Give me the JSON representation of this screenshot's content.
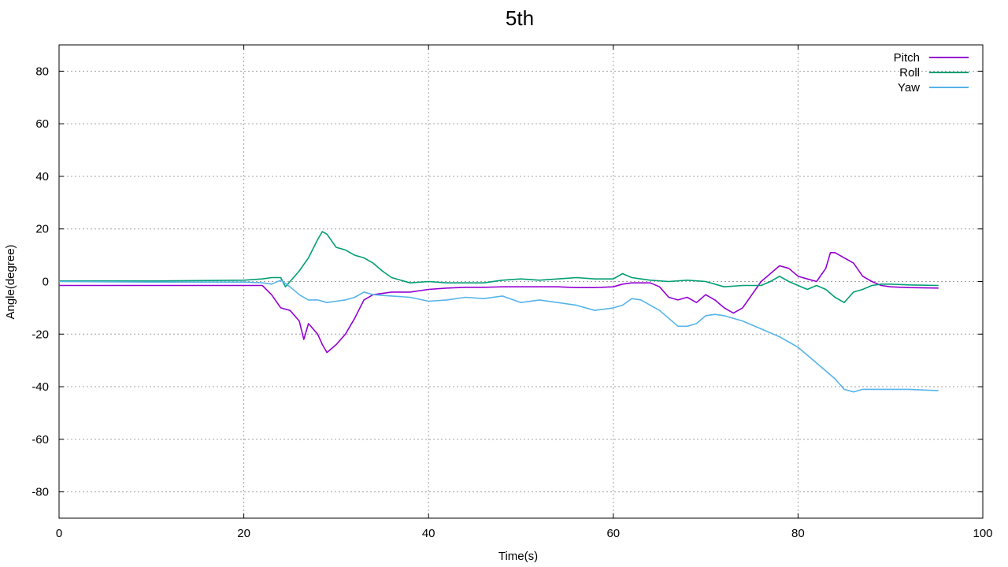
{
  "chart_data": {
    "type": "line",
    "title": "5th",
    "xlabel": "Time(s)",
    "ylabel": "Angle(degree)",
    "xlim": [
      0,
      100
    ],
    "ylim": [
      -90,
      90
    ],
    "x_ticks": [
      0,
      20,
      40,
      60,
      80,
      100
    ],
    "y_ticks": [
      -80,
      -60,
      -40,
      -20,
      0,
      20,
      40,
      60,
      80
    ],
    "grid": true,
    "legend_position": "top-right",
    "series": [
      {
        "name": "Pitch",
        "color": "#9400d3",
        "points": [
          [
            0,
            -1.5
          ],
          [
            10,
            -1.5
          ],
          [
            20,
            -1.5
          ],
          [
            22,
            -1.5
          ],
          [
            23,
            -5
          ],
          [
            24,
            -10
          ],
          [
            25,
            -11
          ],
          [
            26,
            -15
          ],
          [
            26.5,
            -22
          ],
          [
            27,
            -16
          ],
          [
            28,
            -20
          ],
          [
            28.5,
            -24
          ],
          [
            29,
            -27
          ],
          [
            30,
            -24
          ],
          [
            31,
            -20
          ],
          [
            32,
            -14
          ],
          [
            33,
            -7
          ],
          [
            34,
            -5
          ],
          [
            36,
            -4
          ],
          [
            38,
            -4
          ],
          [
            40,
            -3
          ],
          [
            42,
            -2.5
          ],
          [
            44,
            -2.2
          ],
          [
            46,
            -2.2
          ],
          [
            48,
            -2
          ],
          [
            50,
            -2
          ],
          [
            52,
            -2
          ],
          [
            54,
            -2
          ],
          [
            56,
            -2.3
          ],
          [
            58,
            -2.3
          ],
          [
            60,
            -2
          ],
          [
            61,
            -1
          ],
          [
            62,
            -0.5
          ],
          [
            64,
            -0.5
          ],
          [
            65,
            -2
          ],
          [
            66,
            -6
          ],
          [
            67,
            -7
          ],
          [
            68,
            -6
          ],
          [
            69,
            -8
          ],
          [
            70,
            -5
          ],
          [
            71,
            -7
          ],
          [
            72,
            -10
          ],
          [
            73,
            -12
          ],
          [
            74,
            -10
          ],
          [
            75,
            -5
          ],
          [
            76,
            0
          ],
          [
            77,
            3
          ],
          [
            78,
            6
          ],
          [
            79,
            5
          ],
          [
            80,
            2
          ],
          [
            81,
            1
          ],
          [
            82,
            0
          ],
          [
            83,
            5
          ],
          [
            83.5,
            11
          ],
          [
            84,
            11
          ],
          [
            85,
            9
          ],
          [
            86,
            7
          ],
          [
            87,
            2
          ],
          [
            88,
            0
          ],
          [
            89,
            -1.5
          ],
          [
            90,
            -2
          ],
          [
            92,
            -2.3
          ],
          [
            95.2,
            -2.5
          ]
        ]
      },
      {
        "name": "Roll",
        "color": "#009e73",
        "points": [
          [
            0,
            0.2
          ],
          [
            10,
            0.2
          ],
          [
            20,
            0.5
          ],
          [
            22,
            1
          ],
          [
            23,
            1.5
          ],
          [
            24,
            1.5
          ],
          [
            24.5,
            -2
          ],
          [
            25,
            0
          ],
          [
            26,
            4
          ],
          [
            27,
            9
          ],
          [
            28,
            16
          ],
          [
            28.5,
            19
          ],
          [
            29,
            18
          ],
          [
            30,
            13
          ],
          [
            31,
            12
          ],
          [
            32,
            10
          ],
          [
            33,
            9
          ],
          [
            34,
            7
          ],
          [
            35,
            4
          ],
          [
            36,
            1.5
          ],
          [
            38,
            -0.5
          ],
          [
            40,
            0
          ],
          [
            42,
            -0.5
          ],
          [
            44,
            -0.5
          ],
          [
            46,
            -0.5
          ],
          [
            48,
            0.5
          ],
          [
            50,
            1
          ],
          [
            52,
            0.5
          ],
          [
            54,
            1
          ],
          [
            56,
            1.5
          ],
          [
            58,
            1
          ],
          [
            60,
            1
          ],
          [
            61,
            3
          ],
          [
            62,
            1.5
          ],
          [
            63,
            1
          ],
          [
            64,
            0.5
          ],
          [
            66,
            0
          ],
          [
            68,
            0.5
          ],
          [
            70,
            0
          ],
          [
            72,
            -2
          ],
          [
            74,
            -1.5
          ],
          [
            76,
            -1.5
          ],
          [
            77,
            0
          ],
          [
            78,
            2
          ],
          [
            79,
            0
          ],
          [
            80,
            -1.5
          ],
          [
            81,
            -3
          ],
          [
            82,
            -1.5
          ],
          [
            83,
            -3
          ],
          [
            84,
            -6
          ],
          [
            85,
            -8
          ],
          [
            86,
            -4
          ],
          [
            87,
            -3
          ],
          [
            88,
            -1.5
          ],
          [
            89,
            -1
          ],
          [
            90,
            -1
          ],
          [
            92,
            -1.3
          ],
          [
            95.2,
            -1.5
          ]
        ]
      },
      {
        "name": "Yaw",
        "color": "#56b4e9",
        "points": [
          [
            0,
            0
          ],
          [
            10,
            -0.2
          ],
          [
            20,
            -0.2
          ],
          [
            22,
            -0.5
          ],
          [
            23,
            -1
          ],
          [
            24,
            0.5
          ],
          [
            25,
            -2
          ],
          [
            26,
            -5
          ],
          [
            27,
            -7
          ],
          [
            28,
            -7
          ],
          [
            29,
            -8
          ],
          [
            30,
            -7.5
          ],
          [
            31,
            -7
          ],
          [
            32,
            -6
          ],
          [
            33,
            -4
          ],
          [
            34,
            -5
          ],
          [
            36,
            -5.5
          ],
          [
            38,
            -6
          ],
          [
            40,
            -7.5
          ],
          [
            42,
            -7
          ],
          [
            44,
            -6
          ],
          [
            46,
            -6.5
          ],
          [
            48,
            -5.5
          ],
          [
            50,
            -8
          ],
          [
            52,
            -7
          ],
          [
            54,
            -8
          ],
          [
            56,
            -9
          ],
          [
            58,
            -11
          ],
          [
            60,
            -10
          ],
          [
            61,
            -9
          ],
          [
            62,
            -6.5
          ],
          [
            63,
            -7
          ],
          [
            64,
            -9
          ],
          [
            65,
            -11
          ],
          [
            66,
            -14
          ],
          [
            67,
            -17
          ],
          [
            68,
            -17
          ],
          [
            69,
            -16
          ],
          [
            70,
            -13
          ],
          [
            71,
            -12.5
          ],
          [
            72,
            -13
          ],
          [
            74,
            -15
          ],
          [
            76,
            -18
          ],
          [
            78,
            -21
          ],
          [
            80,
            -25
          ],
          [
            82,
            -31
          ],
          [
            84,
            -37
          ],
          [
            85,
            -41
          ],
          [
            86,
            -42
          ],
          [
            87,
            -41
          ],
          [
            88,
            -41
          ],
          [
            90,
            -41
          ],
          [
            92,
            -41
          ],
          [
            95.2,
            -41.5
          ]
        ]
      }
    ]
  }
}
